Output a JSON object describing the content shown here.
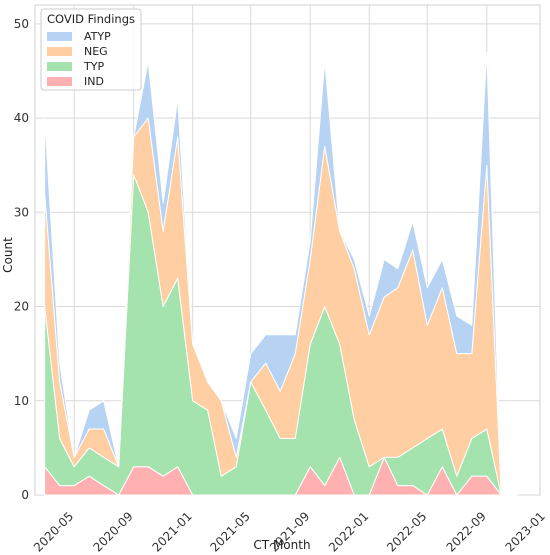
{
  "chart_data": {
    "type": "area",
    "stacked": true,
    "xlabel": "CT Month",
    "ylabel": "Count",
    "ylim": [
      0,
      52
    ],
    "xlim": [
      "2020-02-10",
      "2022-12-20"
    ],
    "y_ticks": [
      0,
      10,
      20,
      30,
      40,
      50
    ],
    "x_ticks": [
      "2020-05",
      "2020-09",
      "2021-01",
      "2021-05",
      "2021-09",
      "2022-01",
      "2022-05",
      "2022-09",
      "2023-01"
    ],
    "grid": true,
    "legend": {
      "title": "COVID Findings",
      "placement": "top-left"
    },
    "x": [
      "2020-03",
      "2020-04",
      "2020-05",
      "2020-06",
      "2020-07",
      "2020-08",
      "2020-09",
      "2020-10",
      "2020-11",
      "2020-12",
      "2021-01",
      "2021-02",
      "2021-03",
      "2021-04",
      "2021-05",
      "2021-06",
      "2021-07",
      "2021-08",
      "2021-09",
      "2021-10",
      "2021-11",
      "2021-12",
      "2022-01",
      "2022-02",
      "2022-03",
      "2022-04",
      "2022-05",
      "2022-06",
      "2022-07",
      "2022-08",
      "2022-09",
      "2022-10",
      "2022-11"
    ],
    "series": [
      {
        "name": "IND",
        "color": "#ffb1b1",
        "values": [
          3,
          1,
          1,
          2,
          1,
          0,
          3,
          3,
          2,
          3,
          0,
          0,
          0,
          0,
          0,
          0,
          0,
          0,
          3,
          1,
          4,
          0,
          0,
          4,
          1,
          1,
          0,
          3,
          0,
          2,
          2,
          0,
          0
        ]
      },
      {
        "name": "TYP",
        "color": "#a4e3ad",
        "values": [
          17,
          5,
          2,
          3,
          3,
          3,
          31,
          27,
          18,
          20,
          10,
          9,
          2,
          3,
          12,
          9,
          6,
          6,
          13,
          19,
          12,
          8,
          3,
          0,
          3,
          4,
          6,
          4,
          2,
          4,
          5,
          0,
          0
        ]
      },
      {
        "name": "NEG",
        "color": "#ffcfa3",
        "values": [
          12,
          6,
          1,
          2,
          3,
          0,
          4,
          10,
          8,
          15,
          6,
          3,
          8,
          1,
          0,
          5,
          5,
          9,
          9,
          17,
          12,
          16,
          14,
          17,
          18,
          21,
          12,
          15,
          13,
          9,
          28,
          0,
          0
        ]
      },
      {
        "name": "ATYP",
        "color": "#b7d3f4",
        "values": [
          8,
          2,
          0,
          2,
          3,
          0,
          0,
          6,
          3,
          4,
          0,
          0,
          0,
          2,
          3,
          3,
          6,
          2,
          2,
          9,
          0,
          1,
          2,
          4,
          2,
          3,
          4,
          3,
          4,
          3,
          12,
          0,
          0
        ]
      }
    ],
    "legend_order": [
      "ATYP",
      "NEG",
      "TYP",
      "IND"
    ]
  }
}
